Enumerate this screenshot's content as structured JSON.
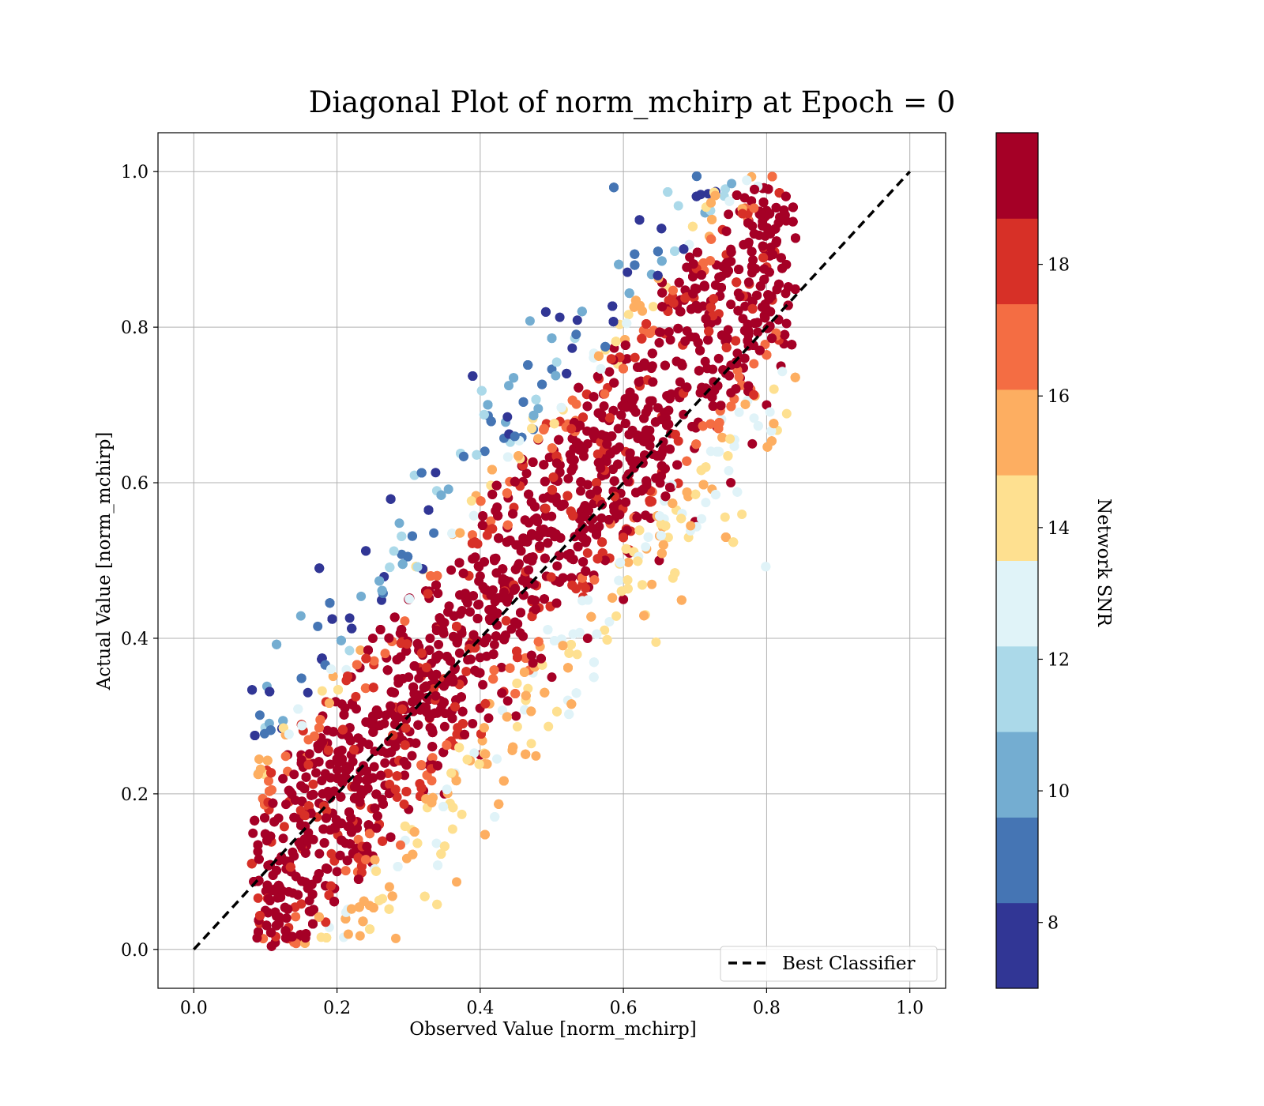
{
  "chart_data": {
    "type": "scatter",
    "title": "Diagonal Plot of norm_mchirp at Epoch = 0",
    "xlabel": "Observed Value [norm_mchirp]",
    "ylabel": "Actual Value [norm_mchirp]",
    "xlim": [
      -0.05,
      1.05
    ],
    "ylim": [
      -0.05,
      1.05
    ],
    "xticks": [
      "0.0",
      "0.2",
      "0.4",
      "0.6",
      "0.8",
      "1.0"
    ],
    "yticks": [
      "0.0",
      "0.2",
      "0.4",
      "0.6",
      "0.8",
      "1.0"
    ],
    "grid": true,
    "legend": {
      "position": "bottom-right",
      "entries": [
        "Best Classifier"
      ]
    },
    "reference_line": {
      "label": "Best Classifier",
      "x": [
        0,
        1
      ],
      "y": [
        0,
        1
      ],
      "style": "dashed",
      "color": "#000000"
    },
    "colorbar": {
      "label": "Network SNR",
      "range": [
        7,
        20
      ],
      "ticks": [
        "8",
        "10",
        "12",
        "14",
        "16",
        "18"
      ],
      "tick_values": [
        8,
        10,
        12,
        14,
        16,
        18
      ],
      "bins": [
        {
          "min": 7,
          "max": 8.3,
          "color": "#313695"
        },
        {
          "min": 8.3,
          "max": 9.6,
          "color": "#4575b4"
        },
        {
          "min": 9.6,
          "max": 10.9,
          "color": "#74add1"
        },
        {
          "min": 10.9,
          "max": 12.2,
          "color": "#abd9e9"
        },
        {
          "min": 12.2,
          "max": 13.5,
          "color": "#e0f3f8"
        },
        {
          "min": 13.5,
          "max": 14.8,
          "color": "#fee090"
        },
        {
          "min": 14.8,
          "max": 16.1,
          "color": "#fdae61"
        },
        {
          "min": 16.1,
          "max": 17.4,
          "color": "#f46d43"
        },
        {
          "min": 17.4,
          "max": 18.7,
          "color": "#d73027"
        },
        {
          "min": 18.7,
          "max": 20,
          "color": "#a50026"
        }
      ]
    },
    "scatter": {
      "note_values": "Dense point cloud; representative points sampled around the diagonal band",
      "points": [
        [
          0.1,
          0.05,
          19.5
        ],
        [
          0.12,
          0.08,
          19
        ],
        [
          0.14,
          0.12,
          19.5
        ],
        [
          0.16,
          0.15,
          19
        ],
        [
          0.18,
          0.2,
          19.5
        ],
        [
          0.2,
          0.22,
          19
        ],
        [
          0.22,
          0.25,
          19.5
        ],
        [
          0.25,
          0.3,
          19
        ],
        [
          0.28,
          0.33,
          19.5
        ],
        [
          0.3,
          0.35,
          19
        ],
        [
          0.33,
          0.4,
          19.5
        ],
        [
          0.35,
          0.42,
          19
        ],
        [
          0.38,
          0.45,
          19.5
        ],
        [
          0.4,
          0.48,
          19
        ],
        [
          0.42,
          0.5,
          19.5
        ],
        [
          0.45,
          0.52,
          19
        ],
        [
          0.48,
          0.55,
          19.5
        ],
        [
          0.5,
          0.58,
          19
        ],
        [
          0.53,
          0.62,
          19.5
        ],
        [
          0.55,
          0.65,
          19
        ],
        [
          0.58,
          0.68,
          19.5
        ],
        [
          0.6,
          0.7,
          19
        ],
        [
          0.63,
          0.75,
          19.5
        ],
        [
          0.65,
          0.78,
          19
        ],
        [
          0.68,
          0.82,
          19.5
        ],
        [
          0.7,
          0.85,
          19
        ],
        [
          0.73,
          0.88,
          19.5
        ],
        [
          0.75,
          0.9,
          19
        ],
        [
          0.78,
          0.93,
          19.5
        ],
        [
          0.8,
          0.95,
          19
        ],
        [
          0.2,
          0.1,
          19
        ],
        [
          0.25,
          0.12,
          19.5
        ],
        [
          0.3,
          0.18,
          19
        ],
        [
          0.35,
          0.2,
          19.5
        ],
        [
          0.4,
          0.25,
          19
        ],
        [
          0.45,
          0.3,
          19.5
        ],
        [
          0.5,
          0.35,
          19
        ],
        [
          0.55,
          0.4,
          19.5
        ],
        [
          0.6,
          0.45,
          19
        ],
        [
          0.65,
          0.5,
          19.5
        ],
        [
          0.7,
          0.55,
          19
        ],
        [
          0.75,
          0.6,
          19.5
        ],
        [
          0.78,
          0.65,
          19
        ],
        [
          0.8,
          0.7,
          19.5
        ],
        [
          0.82,
          0.75,
          19
        ],
        [
          0.15,
          0.25,
          19
        ],
        [
          0.18,
          0.3,
          19.5
        ],
        [
          0.22,
          0.35,
          19
        ],
        [
          0.25,
          0.4,
          19.5
        ],
        [
          0.3,
          0.45,
          19
        ]
      ]
    }
  }
}
